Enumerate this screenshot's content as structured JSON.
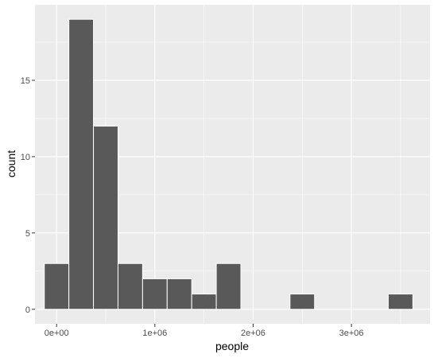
{
  "chart_data": {
    "type": "bar",
    "subtype": "histogram",
    "xlabel": "people",
    "ylabel": "count",
    "x_ticks": [
      {
        "value": 0,
        "label": "0e+00"
      },
      {
        "value": 1000000,
        "label": "1e+06"
      },
      {
        "value": 2000000,
        "label": "2e+06"
      },
      {
        "value": 3000000,
        "label": "3e+06"
      }
    ],
    "y_ticks": [
      {
        "value": 0,
        "label": "0"
      },
      {
        "value": 5,
        "label": "5"
      },
      {
        "value": 10,
        "label": "10"
      },
      {
        "value": 15,
        "label": "15"
      }
    ],
    "xlim": [
      -220000,
      3800000
    ],
    "ylim": [
      -0.95,
      19.95
    ],
    "bins": [
      {
        "start": -125000,
        "end": 125000,
        "count": 3
      },
      {
        "start": 125000,
        "end": 375000,
        "count": 19
      },
      {
        "start": 375000,
        "end": 625000,
        "count": 12
      },
      {
        "start": 625000,
        "end": 875000,
        "count": 3
      },
      {
        "start": 875000,
        "end": 1125000,
        "count": 2
      },
      {
        "start": 1125000,
        "end": 1375000,
        "count": 2
      },
      {
        "start": 1375000,
        "end": 1625000,
        "count": 1
      },
      {
        "start": 1625000,
        "end": 1875000,
        "count": 3
      },
      {
        "start": 1875000,
        "end": 2125000,
        "count": 0
      },
      {
        "start": 2125000,
        "end": 2375000,
        "count": 0
      },
      {
        "start": 2375000,
        "end": 2625000,
        "count": 1
      },
      {
        "start": 2625000,
        "end": 2875000,
        "count": 0
      },
      {
        "start": 2875000,
        "end": 3125000,
        "count": 0
      },
      {
        "start": 3125000,
        "end": 3375000,
        "count": 0
      },
      {
        "start": 3375000,
        "end": 3625000,
        "count": 1
      }
    ],
    "grid": true,
    "colors": {
      "panel_background": "#ebebeb",
      "grid_major": "#ffffff",
      "bar_fill": "#595959",
      "bar_outline": "#ffffff"
    }
  }
}
